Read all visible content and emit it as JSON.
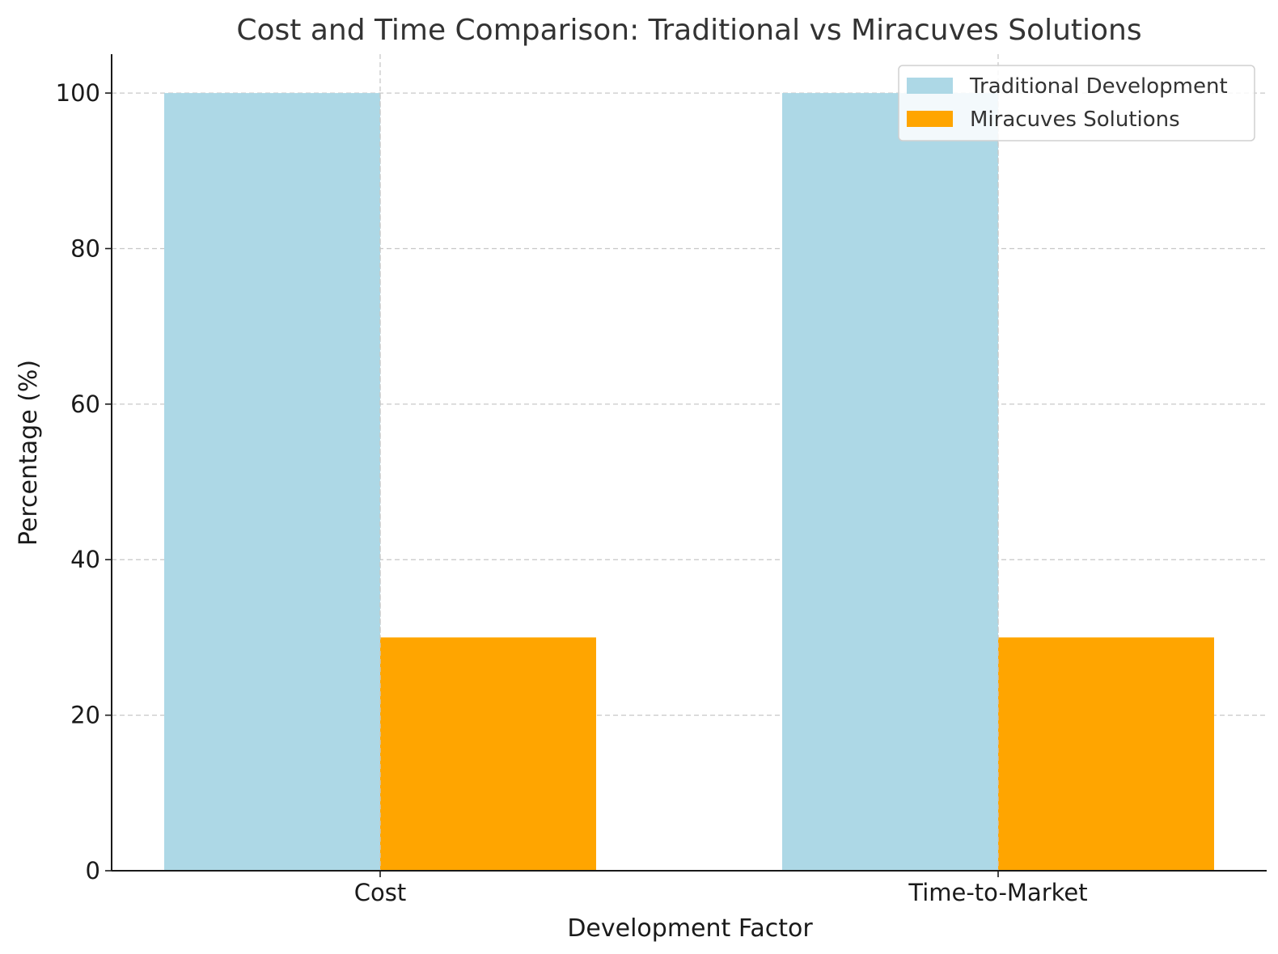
{
  "colors": {
    "traditional": "#add8e6",
    "miracuves": "#ffa500"
  },
  "chart_data": {
    "type": "bar",
    "title": "Cost and Time Comparison: Traditional vs Miracuves Solutions",
    "xlabel": "Development Factor",
    "ylabel": "Percentage (%)",
    "categories": [
      "Cost",
      "Time-to-Market"
    ],
    "series": [
      {
        "name": "Traditional Development",
        "values": [
          100,
          100
        ]
      },
      {
        "name": "Miracuves Solutions",
        "values": [
          30,
          30
        ]
      }
    ],
    "ylim": [
      0,
      105
    ],
    "yticks": [
      "0",
      "20",
      "40",
      "60",
      "80",
      "100"
    ],
    "grid": true,
    "legend_position": "top-right"
  }
}
